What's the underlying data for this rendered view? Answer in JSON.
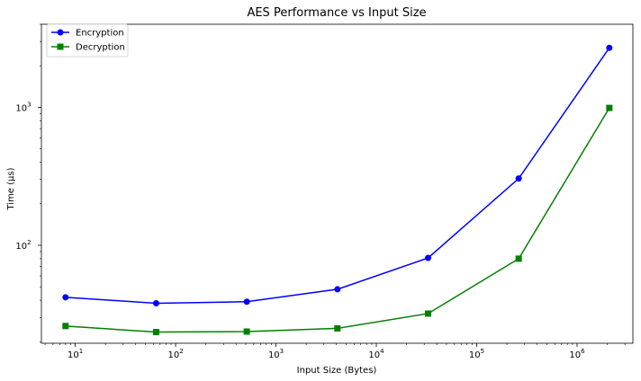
{
  "chart_data": {
    "type": "line",
    "title": "AES Performance vs Input Size",
    "xlabel": "Input Size (Bytes)",
    "ylabel": "Time (µs)",
    "x_scale": "log",
    "y_scale": "log",
    "xlim": [
      4.6,
      3600000
    ],
    "ylim": [
      19.5,
      4000
    ],
    "grid": false,
    "legend_position": "top-left",
    "x": [
      8,
      64,
      512,
      4096,
      32768,
      262144,
      2097152
    ],
    "series": [
      {
        "name": "Encryption",
        "color": "#0000ff",
        "marker": "circle",
        "values": [
          42,
          38,
          39,
          48,
          81,
          305,
          2700
        ]
      },
      {
        "name": "Decryption",
        "color": "#008000",
        "marker": "square",
        "values": [
          26,
          23.5,
          23.7,
          25,
          32,
          80,
          990
        ]
      }
    ],
    "x_ticks": [
      {
        "value": 10,
        "base": "10",
        "exp": "1"
      },
      {
        "value": 100,
        "base": "10",
        "exp": "2"
      },
      {
        "value": 1000,
        "base": "10",
        "exp": "3"
      },
      {
        "value": 10000,
        "base": "10",
        "exp": "4"
      },
      {
        "value": 100000,
        "base": "10",
        "exp": "5"
      },
      {
        "value": 1000000,
        "base": "10",
        "exp": "6"
      }
    ],
    "y_ticks": [
      {
        "value": 100,
        "base": "10",
        "exp": "2"
      },
      {
        "value": 1000,
        "base": "10",
        "exp": "3"
      }
    ]
  }
}
